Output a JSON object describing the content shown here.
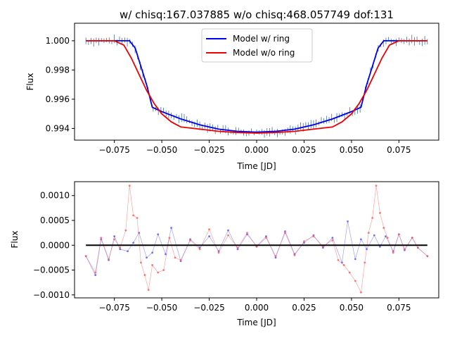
{
  "colors": {
    "model_with_ring": "#0000ee",
    "model_without_ring": "#ee0000",
    "observed": "#3a6fa8",
    "residual_with_ring": "#5555ff",
    "residual_without_ring": "#ff5a5a",
    "zero_line": "#000000"
  },
  "chart_data": [
    {
      "type": "line",
      "title": "w/ chisq:167.037885 w/o chisq:468.057749 dof:131",
      "xlabel": "Time [JD]",
      "ylabel": "Flux",
      "xlim": [
        -0.096,
        0.096
      ],
      "ylim": [
        0.9932,
        1.0012
      ],
      "x_ticks": [
        "−0.075",
        "−0.050",
        "−0.025",
        "0.000",
        "0.025",
        "0.050",
        "0.075"
      ],
      "x_tick_values": [
        -0.075,
        -0.05,
        -0.025,
        0.0,
        0.025,
        0.05,
        0.075
      ],
      "y_ticks": [
        "0.994",
        "0.996",
        "0.998",
        "1.000"
      ],
      "y_tick_values": [
        0.994,
        0.996,
        0.998,
        1.0
      ],
      "legend": {
        "position": "top-center",
        "entries": [
          "Model w/ ring",
          "Model w/o ring"
        ]
      },
      "series": [
        {
          "name": "Model w/ ring",
          "x": [
            -0.09,
            -0.067,
            -0.064,
            -0.058,
            -0.055,
            -0.05,
            -0.04,
            -0.03,
            -0.02,
            -0.01,
            0.0,
            0.01,
            0.02,
            0.03,
            0.04,
            0.05,
            0.055,
            0.058,
            0.064,
            0.067,
            0.09
          ],
          "values": [
            1.0,
            1.0,
            0.9995,
            0.997,
            0.99545,
            0.99515,
            0.99465,
            0.99425,
            0.99395,
            0.9938,
            0.99375,
            0.9938,
            0.99395,
            0.99425,
            0.99465,
            0.99515,
            0.99545,
            0.997,
            0.9995,
            1.0,
            1.0
          ]
        },
        {
          "name": "Model w/o ring",
          "x": [
            -0.09,
            -0.075,
            -0.07,
            -0.066,
            -0.062,
            -0.058,
            -0.054,
            -0.05,
            -0.045,
            -0.04,
            -0.03,
            -0.02,
            -0.01,
            0.0,
            0.01,
            0.02,
            0.03,
            0.04,
            0.045,
            0.05,
            0.054,
            0.058,
            0.062,
            0.066,
            0.07,
            0.075,
            0.09
          ],
          "values": [
            1.0,
            1.0,
            0.9997,
            0.9988,
            0.9977,
            0.9966,
            0.9957,
            0.995,
            0.99445,
            0.9941,
            0.99395,
            0.9938,
            0.99372,
            0.99368,
            0.99372,
            0.9938,
            0.99395,
            0.9941,
            0.99445,
            0.995,
            0.9957,
            0.9966,
            0.9977,
            0.9988,
            0.9997,
            1.0,
            1.0
          ]
        }
      ],
      "observed_transit_depth_note": ""
    },
    {
      "type": "line",
      "title": "",
      "xlabel": "Time [JD]",
      "ylabel": "Flux",
      "xlim": [
        -0.096,
        0.096
      ],
      "ylim": [
        -0.00106,
        0.00128
      ],
      "x_ticks": [
        "−0.075",
        "−0.050",
        "−0.025",
        "0.000",
        "0.025",
        "0.050",
        "0.075"
      ],
      "x_tick_values": [
        -0.075,
        -0.05,
        -0.025,
        0.0,
        0.025,
        0.05,
        0.075
      ],
      "y_ticks": [
        "−0.0010",
        "−0.0005",
        "0.0000",
        "0.0005",
        "0.0010"
      ],
      "y_tick_values": [
        -0.001,
        -0.0005,
        0.0,
        0.0005,
        0.001
      ],
      "series": [
        {
          "name": "",
          "description_role": "residual w/ ring",
          "x": [
            -0.09,
            -0.085,
            -0.082,
            -0.078,
            -0.075,
            -0.072,
            -0.068,
            -0.065,
            -0.062,
            -0.058,
            -0.055,
            -0.052,
            -0.048,
            -0.045,
            -0.04,
            -0.035,
            -0.03,
            -0.025,
            -0.02,
            -0.015,
            -0.01,
            -0.005,
            0.0,
            0.005,
            0.01,
            0.015,
            0.02,
            0.025,
            0.03,
            0.035,
            0.04,
            0.045,
            0.048,
            0.052,
            0.055,
            0.058,
            0.062,
            0.065,
            0.068,
            0.072,
            0.075,
            0.078,
            0.082,
            0.085,
            0.09
          ],
          "values": [
            -0.00022,
            -0.0006,
            0.00012,
            -0.0003,
            0.00018,
            -8e-05,
            -0.00012,
            5e-05,
            0.00025,
            -0.00025,
            -0.00015,
            0.00022,
            -0.00018,
            0.00035,
            -0.00032,
            0.00012,
            -5e-05,
            0.00018,
            -0.00012,
            0.0003,
            -8e-05,
            0.00022,
            -2e-05,
            0.00018,
            -0.00025,
            0.00028,
            -0.00018,
            5e-05,
            0.0002,
            -5e-05,
            0.00015,
            -0.00035,
            0.00048,
            -0.00028,
            0.00012,
            -8e-05,
            0.0002,
            -3e-05,
            0.00018,
            -0.00012,
            0.00022,
            -0.0001,
            0.00015,
            -5e-05,
            -0.00022
          ]
        },
        {
          "name": "",
          "description_role": "residual w/o ring",
          "x": [
            -0.09,
            -0.085,
            -0.082,
            -0.078,
            -0.075,
            -0.072,
            -0.069,
            -0.067,
            -0.065,
            -0.063,
            -0.061,
            -0.059,
            -0.057,
            -0.055,
            -0.052,
            -0.049,
            -0.046,
            -0.043,
            -0.04,
            -0.035,
            -0.03,
            -0.025,
            -0.02,
            -0.015,
            -0.01,
            -0.005,
            0.0,
            0.005,
            0.01,
            0.015,
            0.02,
            0.025,
            0.03,
            0.035,
            0.04,
            0.043,
            0.046,
            0.049,
            0.052,
            0.055,
            0.057,
            0.059,
            0.061,
            0.063,
            0.065,
            0.067,
            0.069,
            0.072,
            0.075,
            0.078,
            0.082,
            0.085,
            0.09
          ],
          "values": [
            -0.00022,
            -0.00055,
            0.00015,
            -0.00028,
            0.00012,
            -5e-05,
            0.0003,
            0.0012,
            0.0006,
            0.00055,
            -0.00035,
            -0.0006,
            -0.0009,
            -0.0004,
            -0.00055,
            -0.0005,
            0.00015,
            -0.00025,
            -0.0003,
            0.0001,
            -8e-05,
            0.00032,
            -0.00015,
            0.0002,
            -5e-05,
            0.00025,
            -3e-05,
            0.00015,
            -0.00022,
            0.00025,
            -0.0002,
            8e-05,
            0.00018,
            -2e-05,
            0.0001,
            -0.0003,
            -0.0004,
            -0.00055,
            -0.00072,
            -0.00095,
            -0.00035,
            0.00025,
            0.00055,
            0.0012,
            0.00065,
            0.00035,
            0.00015,
            -0.00015,
            0.00022,
            -8e-05,
            0.00015,
            -5e-05,
            -0.00022
          ]
        },
        {
          "name": "",
          "description_role": "zero line",
          "x": [
            -0.09,
            0.09
          ],
          "values": [
            0.0,
            0.0
          ]
        }
      ]
    }
  ]
}
